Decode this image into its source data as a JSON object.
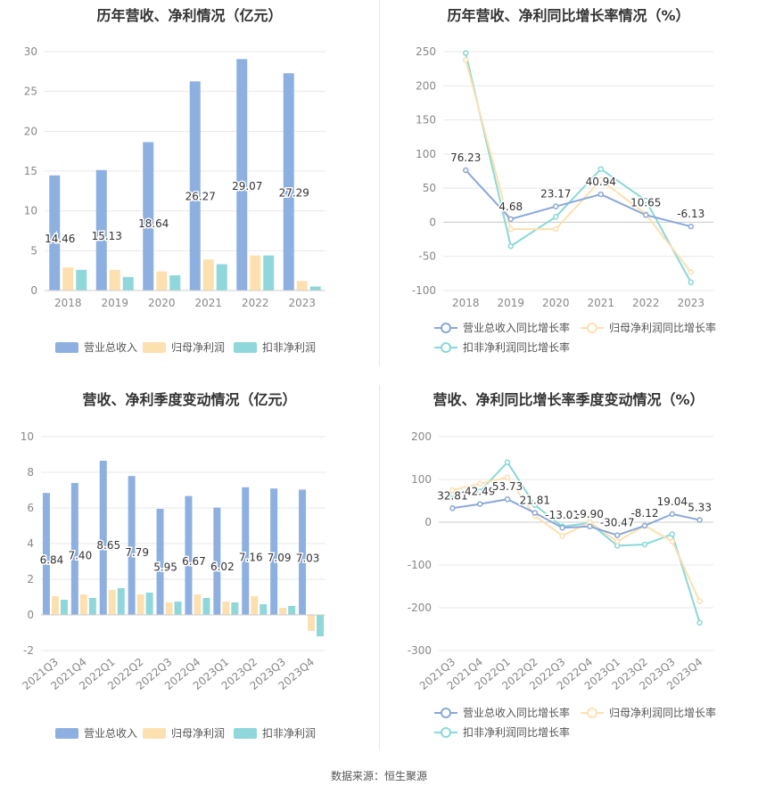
{
  "footer": "数据来源：恒生聚源",
  "colors": {
    "revenue": "#8eb0e0",
    "net": "#fde0b0",
    "deduct": "#8fd7da",
    "line_rev": "#8aa8d8",
    "line_net": "#fde0b0",
    "line_deduct": "#8ad8d8",
    "grid": "#e8e8e8",
    "axis_text": "#888888"
  },
  "chart_data": [
    {
      "type": "bar",
      "title": "历年营收、净利情况（亿元）",
      "categories": [
        "2018",
        "2019",
        "2020",
        "2021",
        "2022",
        "2023"
      ],
      "ylim": [
        0,
        30
      ],
      "yticks": [
        0,
        5,
        10,
        15,
        20,
        25,
        30
      ],
      "series": [
        {
          "name": "营业总收入",
          "values": [
            14.46,
            15.13,
            18.64,
            26.27,
            29.07,
            27.29
          ]
        },
        {
          "name": "归母净利润",
          "values": [
            2.9,
            2.6,
            2.4,
            3.9,
            4.4,
            1.2
          ]
        },
        {
          "name": "扣非净利润",
          "values": [
            2.6,
            1.7,
            1.9,
            3.3,
            4.4,
            0.5
          ]
        }
      ],
      "data_labels": [
        "14.46",
        "15.13",
        "18.64",
        "26.27",
        "29.07",
        "27.29"
      ],
      "legend": "bottom"
    },
    {
      "type": "line",
      "title": "历年营收、净利同比增长率情况（%）",
      "categories": [
        "2018",
        "2019",
        "2020",
        "2021",
        "2022",
        "2023"
      ],
      "ylim": [
        -100,
        250
      ],
      "yticks": [
        -100,
        -50,
        0,
        50,
        100,
        150,
        200,
        250
      ],
      "series": [
        {
          "name": "营业总收入同比增长率",
          "values": [
            76.23,
            4.68,
            23.17,
            40.94,
            10.65,
            -6.13
          ]
        },
        {
          "name": "归母净利润同比增长率",
          "values": [
            238,
            -10,
            -10,
            62,
            12,
            -73
          ]
        },
        {
          "name": "扣非净利润同比增长率",
          "values": [
            248,
            -35,
            8,
            78,
            32,
            -88
          ]
        }
      ],
      "data_labels": [
        "76.23",
        "4.68",
        "23.17",
        "40.94",
        "10.65",
        "-6.13"
      ],
      "legend": "bottom"
    },
    {
      "type": "bar",
      "title": "营收、净利季度变动情况（亿元）",
      "categories": [
        "2021Q3",
        "2021Q4",
        "2022Q1",
        "2022Q2",
        "2022Q3",
        "2022Q4",
        "2023Q1",
        "2023Q2",
        "2023Q3",
        "2023Q4"
      ],
      "ylim": [
        -2,
        10
      ],
      "yticks": [
        -2,
        0,
        2,
        4,
        6,
        8,
        10
      ],
      "series": [
        {
          "name": "营业总收入",
          "values": [
            6.84,
            7.4,
            8.65,
            7.79,
            5.95,
            6.67,
            6.02,
            7.16,
            7.09,
            7.03
          ]
        },
        {
          "name": "归母净利润",
          "values": [
            1.05,
            1.15,
            1.4,
            1.15,
            0.7,
            1.15,
            0.75,
            1.05,
            0.4,
            -0.9
          ]
        },
        {
          "name": "扣非净利润",
          "values": [
            0.85,
            0.95,
            1.5,
            1.25,
            0.75,
            0.95,
            0.7,
            0.6,
            0.5,
            -1.2
          ]
        }
      ],
      "data_labels": [
        "6.84",
        "7.40",
        "8.65",
        "7.79",
        "5.95",
        "6.67",
        "6.02",
        "7.16",
        "7.09",
        "7.03"
      ],
      "legend": "bottom"
    },
    {
      "type": "line",
      "title": "营收、净利同比增长率季度变动情况（%）",
      "categories": [
        "2021Q3",
        "2021Q4",
        "2022Q1",
        "2022Q2",
        "2022Q3",
        "2022Q4",
        "2023Q1",
        "2023Q2",
        "2023Q3",
        "2023Q4"
      ],
      "ylim": [
        -300,
        200
      ],
      "yticks": [
        -300,
        -200,
        -100,
        0,
        100,
        200
      ],
      "series": [
        {
          "name": "营业总收入同比增长率",
          "values": [
            32.81,
            42.49,
            53.73,
            21.81,
            -13.01,
            -9.9,
            -30.47,
            -8.12,
            19.04,
            5.33
          ]
        },
        {
          "name": "归母净利润同比增长率",
          "values": [
            75,
            90,
            105,
            15,
            -32,
            0,
            -45,
            -8,
            -45,
            -185
          ]
        },
        {
          "name": "扣非净利润同比增长率",
          "values": [
            65,
            72,
            140,
            40,
            -10,
            -2,
            -55,
            -52,
            -28,
            -235
          ]
        }
      ],
      "data_labels": [
        "32.81",
        "42.49",
        "53.73",
        "21.81",
        "-13.01",
        "-9.90",
        "-30.47",
        "-8.12",
        "19.04",
        "5.33"
      ],
      "legend": "bottom"
    }
  ]
}
